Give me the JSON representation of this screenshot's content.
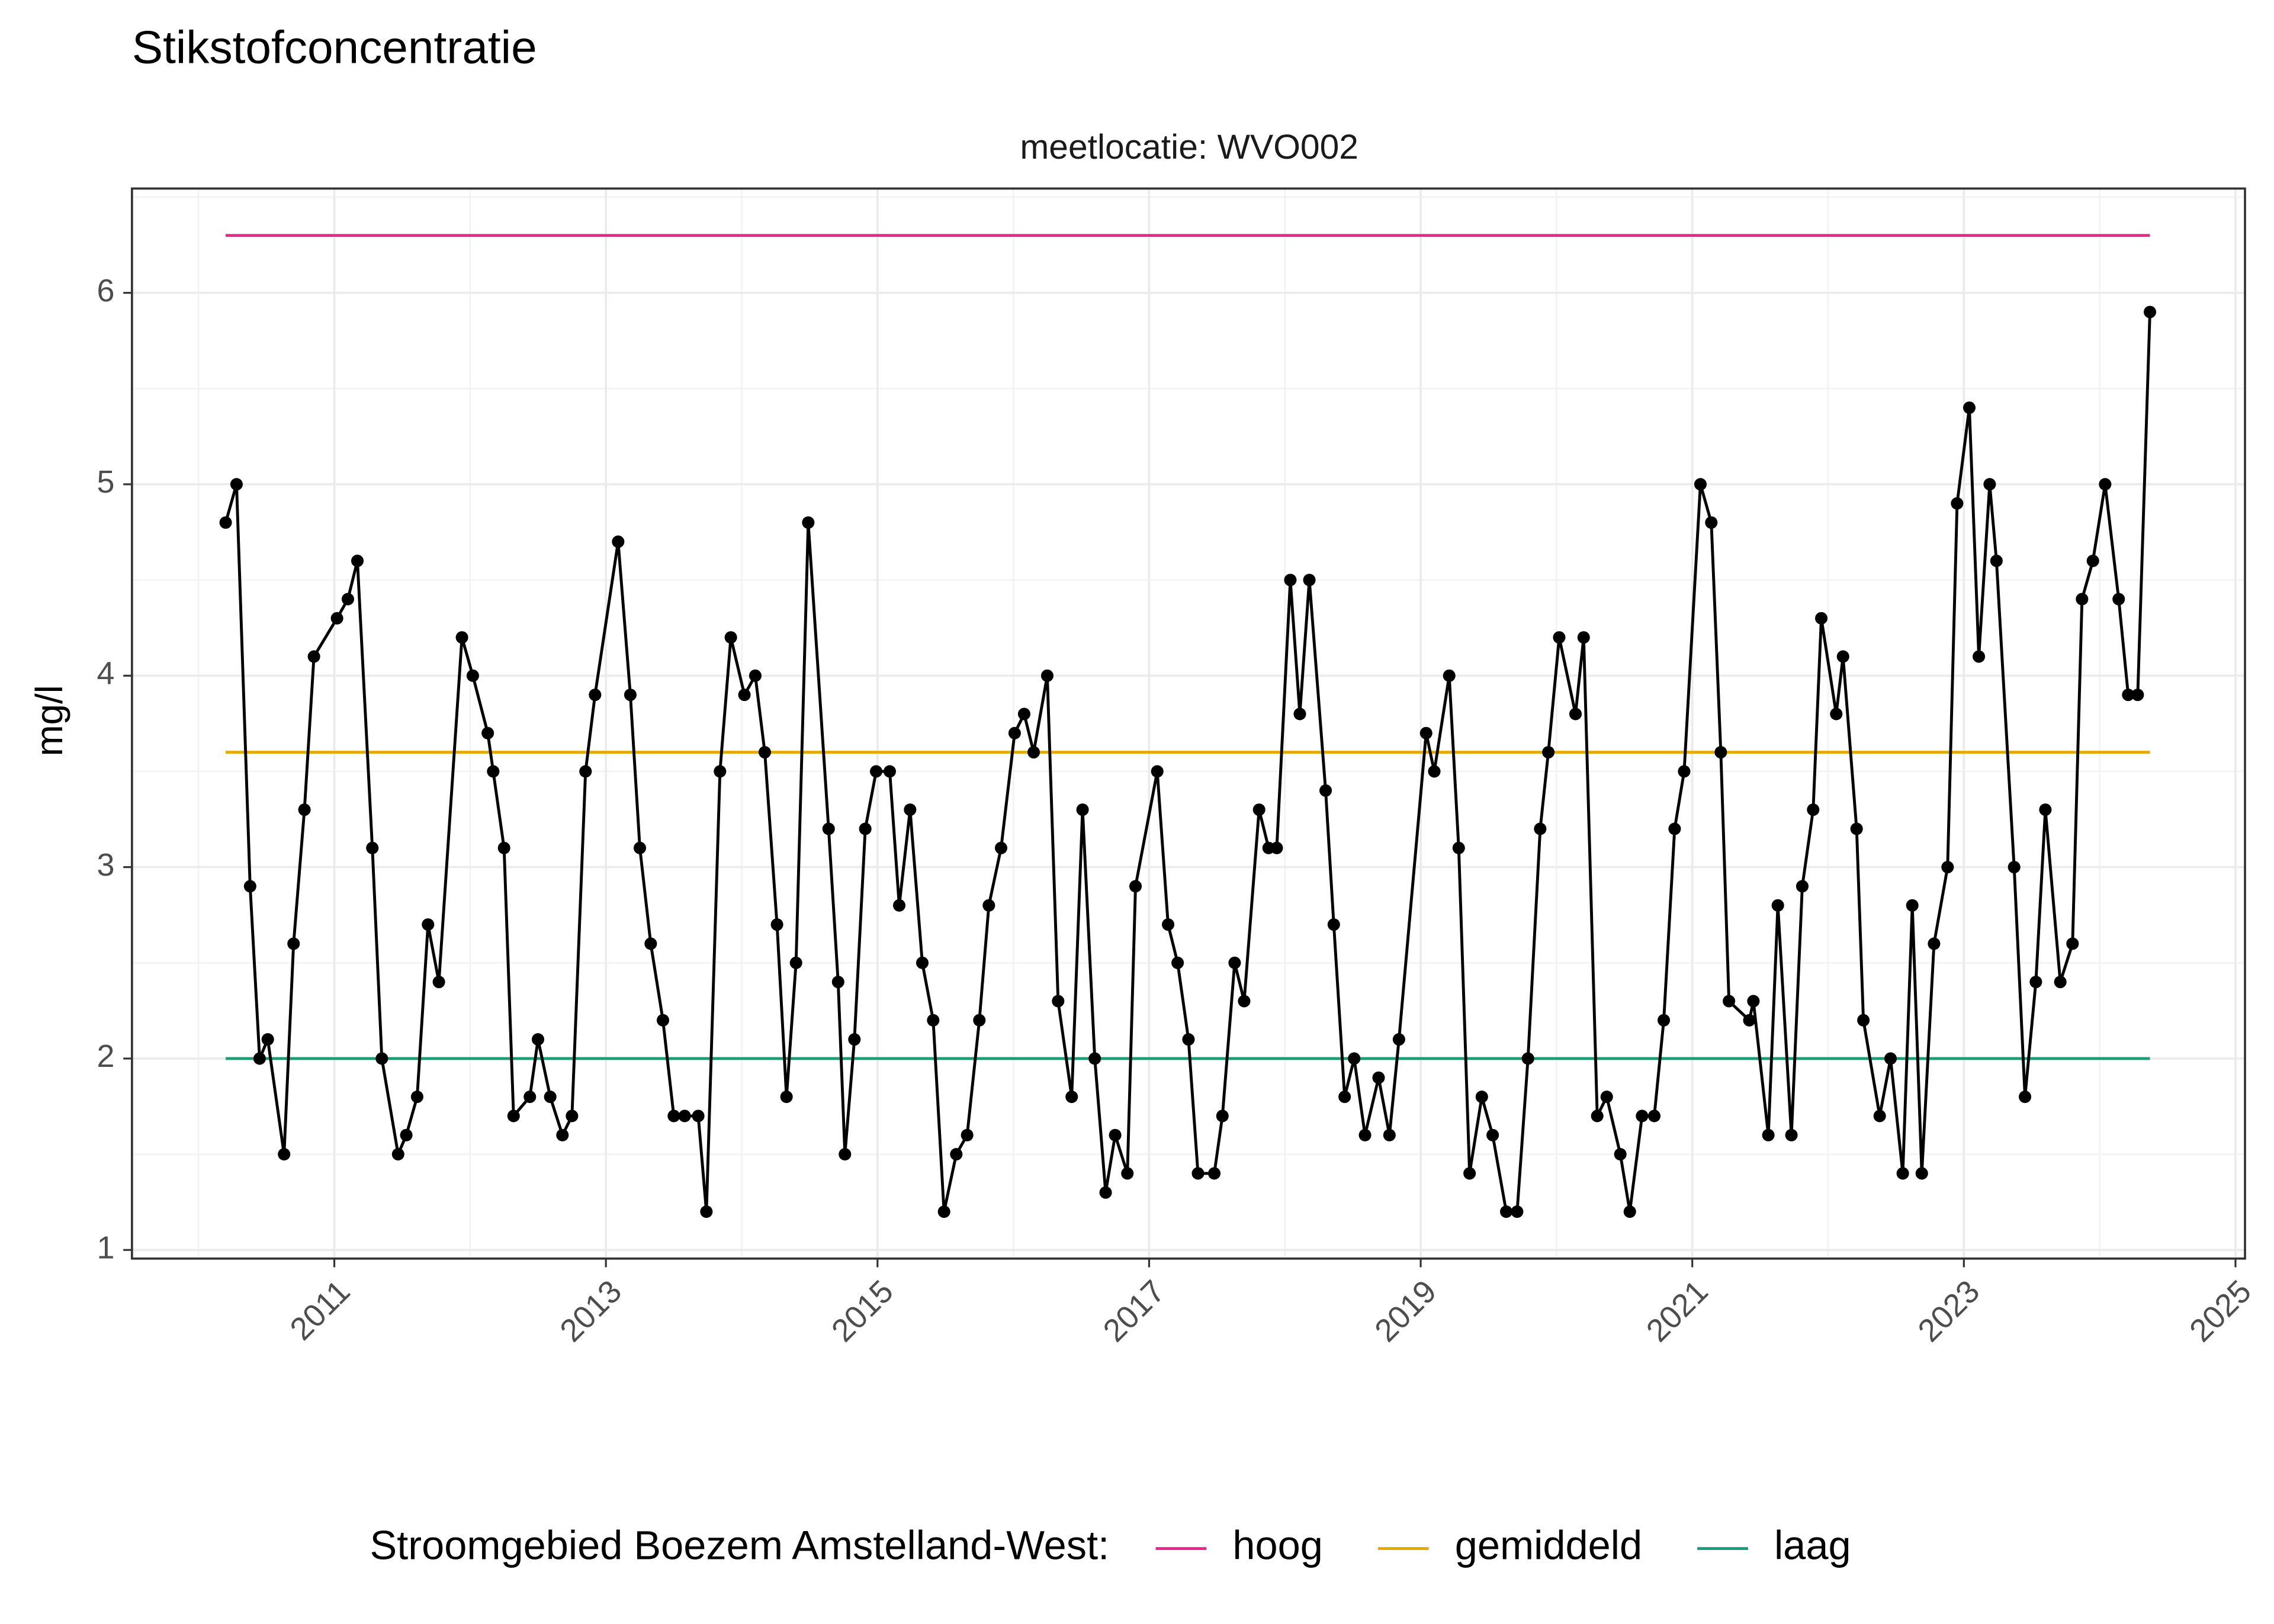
{
  "chart_data": {
    "type": "line",
    "title": "Stikstofconcentratie",
    "subtitle": "meetlocatie: WVO002",
    "y_label": "mg/l",
    "legend_title": "Stroomgebied Boezem Amstelland-West:",
    "legend_position": "bottom",
    "grid": true,
    "color": "#000000",
    "xlim": [
      2009.51,
      2025.07
    ],
    "xticks": [
      2011,
      2013,
      2015,
      2017,
      2019,
      2021,
      2023,
      2025
    ],
    "ylim": [
      0.955,
      6.545
    ],
    "yticks": [
      1,
      2,
      3,
      4,
      5,
      6
    ],
    "x": [
      2010.2,
      2010.28,
      2010.38,
      2010.45,
      2010.51,
      2010.63,
      2010.7,
      2010.78,
      2010.85,
      2011.02,
      2011.1,
      2011.17,
      2011.28,
      2011.35,
      2011.47,
      2011.53,
      2011.61,
      2011.69,
      2011.77,
      2011.94,
      2012.02,
      2012.13,
      2012.17,
      2012.25,
      2012.32,
      2012.44,
      2012.5,
      2012.59,
      2012.68,
      2012.75,
      2012.85,
      2012.92,
      2013.09,
      2013.18,
      2013.25,
      2013.33,
      2013.42,
      2013.5,
      2013.58,
      2013.68,
      2013.74,
      2013.84,
      2013.92,
      2014.02,
      2014.1,
      2014.17,
      2014.26,
      2014.33,
      2014.4,
      2014.49,
      2014.64,
      2014.71,
      2014.76,
      2014.83,
      2014.91,
      2014.99,
      2015.09,
      2015.16,
      2015.24,
      2015.33,
      2015.41,
      2015.49,
      2015.58,
      2015.66,
      2015.75,
      2015.82,
      2015.91,
      2016.01,
      2016.08,
      2016.15,
      2016.25,
      2016.33,
      2016.43,
      2016.51,
      2016.6,
      2016.68,
      2016.75,
      2016.84,
      2016.9,
      2017.06,
      2017.14,
      2017.21,
      2017.29,
      2017.36,
      2017.48,
      2017.54,
      2017.63,
      2017.7,
      2017.81,
      2017.88,
      2017.94,
      2018.04,
      2018.11,
      2018.18,
      2018.3,
      2018.36,
      2018.44,
      2018.51,
      2018.59,
      2018.69,
      2018.77,
      2018.84,
      2019.04,
      2019.1,
      2019.21,
      2019.28,
      2019.36,
      2019.45,
      2019.53,
      2019.63,
      2019.71,
      2019.79,
      2019.88,
      2019.94,
      2020.02,
      2020.14,
      2020.2,
      2020.3,
      2020.37,
      2020.47,
      2020.54,
      2020.63,
      2020.72,
      2020.79,
      2020.87,
      2020.94,
      2021.06,
      2021.14,
      2021.21,
      2021.27,
      2021.42,
      2021.45,
      2021.56,
      2021.63,
      2021.73,
      2021.81,
      2021.89,
      2021.95,
      2022.06,
      2022.11,
      2022.21,
      2022.26,
      2022.38,
      2022.46,
      2022.55,
      2022.62,
      2022.69,
      2022.78,
      2022.88,
      2022.95,
      2023.04,
      2023.11,
      2023.19,
      2023.24,
      2023.37,
      2023.45,
      2023.53,
      2023.6,
      2023.71,
      2023.8,
      2023.87,
      2023.95,
      2024.04,
      2024.14,
      2024.21,
      2024.28,
      2024.37
    ],
    "values": [
      4.8,
      5.0,
      2.9,
      2.0,
      2.1,
      1.5,
      2.6,
      3.3,
      4.1,
      4.3,
      4.4,
      4.6,
      3.1,
      2.0,
      1.5,
      1.6,
      1.8,
      2.7,
      2.4,
      4.2,
      4.0,
      3.7,
      3.5,
      3.1,
      1.7,
      1.8,
      2.1,
      1.8,
      1.6,
      1.7,
      3.5,
      3.9,
      4.7,
      3.9,
      3.1,
      2.6,
      2.2,
      1.7,
      1.7,
      1.7,
      1.2,
      3.5,
      4.2,
      3.9,
      4.0,
      3.6,
      2.7,
      1.8,
      2.5,
      4.8,
      3.2,
      2.4,
      1.5,
      2.1,
      3.2,
      3.5,
      3.5,
      2.8,
      3.3,
      2.5,
      2.2,
      1.2,
      1.5,
      1.6,
      2.2,
      2.8,
      3.1,
      3.7,
      3.8,
      3.6,
      4.0,
      2.3,
      1.8,
      3.3,
      2.0,
      1.3,
      1.6,
      1.4,
      2.9,
      3.5,
      2.7,
      2.5,
      2.1,
      1.4,
      1.4,
      1.7,
      2.5,
      2.3,
      3.3,
      3.1,
      3.1,
      4.5,
      3.8,
      4.5,
      3.4,
      2.7,
      1.8,
      2.0,
      1.6,
      1.9,
      1.6,
      2.1,
      3.7,
      3.5,
      4.0,
      3.1,
      1.4,
      1.8,
      1.6,
      1.2,
      1.2,
      2.0,
      3.2,
      3.6,
      4.2,
      3.8,
      4.2,
      1.7,
      1.8,
      1.5,
      1.2,
      1.7,
      1.7,
      2.2,
      3.2,
      3.5,
      5.0,
      4.8,
      3.6,
      2.3,
      2.2,
      2.3,
      1.6,
      2.8,
      1.6,
      2.9,
      3.3,
      4.3,
      3.8,
      4.1,
      3.2,
      2.2,
      1.7,
      2.0,
      1.4,
      2.8,
      1.4,
      2.6,
      3.0,
      4.9,
      5.4,
      4.1,
      5.0,
      4.6,
      3.0,
      1.8,
      2.4,
      3.3,
      2.4,
      2.6,
      4.4,
      4.6,
      5.0,
      4.4,
      3.9,
      3.9,
      5.9
    ],
    "reference_lines": [
      {
        "name": "hoog",
        "color": "#e7298a",
        "value": 6.3
      },
      {
        "name": "gemiddeld",
        "color": "#e6ab02",
        "value": 3.6
      },
      {
        "name": "laag",
        "color": "#1b9e77",
        "value": 2.0
      }
    ]
  }
}
